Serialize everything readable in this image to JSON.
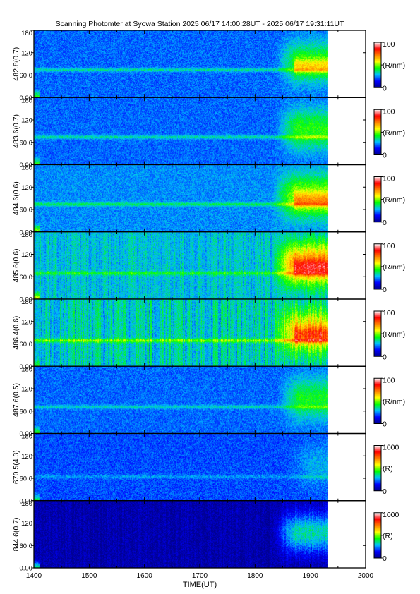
{
  "chart_data": {
    "type": "heatmap",
    "title": "Scanning Photomter at Syowa Station  2025 06/17 14:00:28UT - 2025 06/17 19:31:11UT",
    "xlabel": "TIME(UT)",
    "xlim": [
      1400,
      2000
    ],
    "x_ticks": [
      "1400",
      "1500",
      "1600",
      "1700",
      "1800",
      "1900",
      "2000"
    ],
    "data_end_x": 1931,
    "y_ticks": [
      "0.00",
      "60.0",
      "120",
      "180"
    ],
    "ylim": [
      0,
      180
    ],
    "colormap": [
      "#00008b",
      "#0000ff",
      "#00bfff",
      "#00ff00",
      "#ffff00",
      "#ff8000",
      "#ff0000",
      "#ffffff"
    ],
    "panels": [
      {
        "ylabel": "482.8(0.7)",
        "cb_max": "100",
        "cb_mid": "(R/nm)",
        "cb_min": "0",
        "base": 0.22,
        "band_y": 75,
        "band": 0.12,
        "storm_x": 1835,
        "storm": 0.22,
        "storm_hi": 1,
        "edge_glow": 0.25,
        "banding": 0
      },
      {
        "ylabel": "483.6(0.7)",
        "cb_max": "100",
        "cb_mid": "(R/nm)",
        "cb_min": "0",
        "base": 0.22,
        "band_y": 75,
        "band": 0.12,
        "storm_x": 1835,
        "storm": 0.22,
        "storm_hi": 0,
        "edge_glow": 0.25,
        "banding": 0
      },
      {
        "ylabel": "484.6(0.6)",
        "cb_max": "100",
        "cb_mid": "(R/nm)",
        "cb_min": "0",
        "base": 0.25,
        "band_y": 75,
        "band": 0.13,
        "storm_x": 1830,
        "storm": 0.28,
        "storm_hi": 1,
        "edge_glow": 0.3,
        "banding": 0
      },
      {
        "ylabel": "485.6(0.6)",
        "cb_max": "100",
        "cb_mid": "(R/nm)",
        "cb_min": "0",
        "base": 0.3,
        "band_y": 70,
        "band": 0.12,
        "storm_x": 1830,
        "storm": 0.42,
        "storm_hi": 1,
        "edge_glow": 0.3,
        "banding": 0.05
      },
      {
        "ylabel": "486.4(0.6)",
        "cb_max": "100",
        "cb_mid": "(R/nm)",
        "cb_min": "0",
        "base": 0.32,
        "band_y": 70,
        "band": 0.18,
        "storm_x": 1830,
        "storm": 0.32,
        "storm_hi": 1,
        "edge_glow": 0.15,
        "banding": 0.08
      },
      {
        "ylabel": "487.6(0.5)",
        "cb_max": "100",
        "cb_mid": "(R/nm)",
        "cb_min": "0",
        "base": 0.22,
        "band_y": 72,
        "band": 0.1,
        "storm_x": 1840,
        "storm": 0.2,
        "storm_hi": 0,
        "edge_glow": 0.25,
        "banding": 0
      },
      {
        "ylabel": "670.5(4.3)",
        "cb_max": "1000",
        "cb_mid": "(R)",
        "cb_min": "0",
        "base": 0.2,
        "band_y": 65,
        "band": 0.06,
        "storm_x": 1860,
        "storm": 0.08,
        "storm_hi": 0,
        "edge_glow": 0.2,
        "banding": 0
      },
      {
        "ylabel": "844.6(0.7)",
        "cb_max": "1000",
        "cb_mid": "(R)",
        "cb_min": "0",
        "base": 0.04,
        "band_y": 70,
        "band": 0,
        "storm_x": 1830,
        "storm": 0.3,
        "storm_hi": 0,
        "edge_glow": 0.35,
        "banding": 0.03
      }
    ]
  }
}
